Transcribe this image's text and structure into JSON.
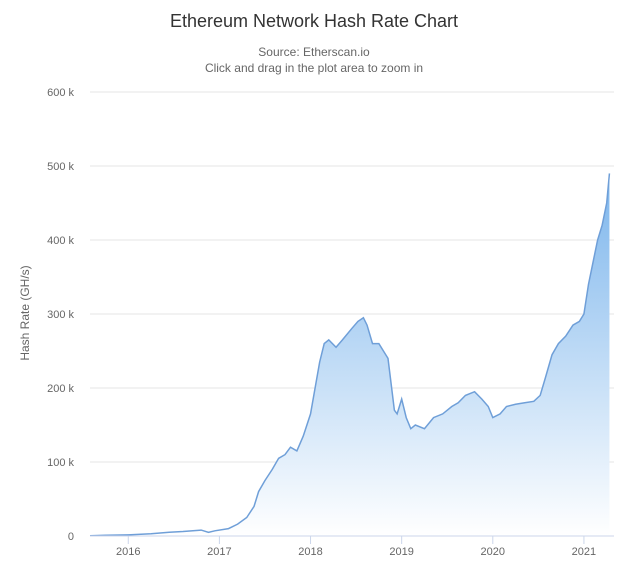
{
  "chart_data": {
    "type": "area",
    "title": "Ethereum Network Hash Rate Chart",
    "subtitle_lines": [
      "Source: Etherscan.io",
      "Click and drag in the plot area to zoom in"
    ],
    "ylabel": "Hash Rate (GH/s)",
    "xlabel": "",
    "ylim": [
      0,
      600000
    ],
    "xlim": [
      2015.58,
      2021.33
    ],
    "y_ticks": [
      {
        "value": 0,
        "label": "0"
      },
      {
        "value": 100000,
        "label": "100 k"
      },
      {
        "value": 200000,
        "label": "200 k"
      },
      {
        "value": 300000,
        "label": "300 k"
      },
      {
        "value": 400000,
        "label": "400 k"
      },
      {
        "value": 500000,
        "label": "500 k"
      },
      {
        "value": 600000,
        "label": "600 k"
      }
    ],
    "x_ticks": [
      {
        "value": 2016,
        "label": "2016"
      },
      {
        "value": 2017,
        "label": "2017"
      },
      {
        "value": 2018,
        "label": "2018"
      },
      {
        "value": 2019,
        "label": "2019"
      },
      {
        "value": 2020,
        "label": "2020"
      },
      {
        "value": 2021,
        "label": "2021"
      }
    ],
    "grid": true,
    "colors": {
      "line": "#6f9fd8",
      "fill_top": "#7cb5ec",
      "fill_bottom": "#ffffff"
    },
    "series": [
      {
        "x": [
          2015.58,
          2015.75,
          2016.0,
          2016.25,
          2016.45,
          2016.6,
          2016.8,
          2016.88,
          2016.95,
          2017.1,
          2017.2,
          2017.3,
          2017.38,
          2017.43,
          2017.5,
          2017.58,
          2017.65,
          2017.72,
          2017.78,
          2017.85,
          2017.92,
          2018.0,
          2018.05,
          2018.1,
          2018.15,
          2018.2,
          2018.28,
          2018.35,
          2018.45,
          2018.52,
          2018.58,
          2018.62,
          2018.68,
          2018.75,
          2018.8,
          2018.85,
          2018.92,
          2018.95,
          2019.0,
          2019.05,
          2019.1,
          2019.15,
          2019.25,
          2019.35,
          2019.45,
          2019.55,
          2019.62,
          2019.7,
          2019.8,
          2019.88,
          2019.95,
          2020.0,
          2020.08,
          2020.15,
          2020.25,
          2020.35,
          2020.45,
          2020.52,
          2020.58,
          2020.65,
          2020.72,
          2020.8,
          2020.88,
          2020.95,
          2021.0,
          2021.05,
          2021.1,
          2021.15,
          2021.2,
          2021.25,
          2021.28
        ],
        "values": [
          300,
          1000,
          1500,
          3000,
          5000,
          6000,
          8000,
          5000,
          7000,
          10000,
          16000,
          25000,
          40000,
          60000,
          75000,
          90000,
          105000,
          110000,
          120000,
          115000,
          135000,
          165000,
          200000,
          235000,
          260000,
          265000,
          255000,
          265000,
          280000,
          290000,
          295000,
          285000,
          260000,
          260000,
          250000,
          240000,
          170000,
          165000,
          185000,
          160000,
          145000,
          150000,
          145000,
          160000,
          165000,
          175000,
          180000,
          190000,
          195000,
          185000,
          175000,
          160000,
          165000,
          175000,
          178000,
          180000,
          182000,
          190000,
          215000,
          245000,
          260000,
          270000,
          285000,
          290000,
          300000,
          340000,
          370000,
          400000,
          420000,
          450000,
          490000
        ]
      }
    ]
  }
}
